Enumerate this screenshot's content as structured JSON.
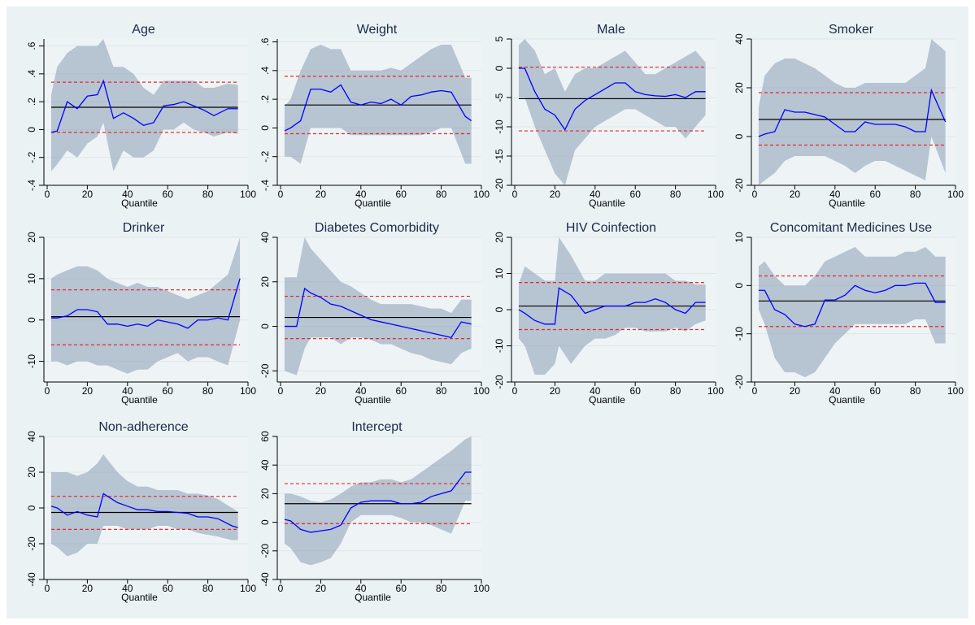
{
  "chart_data": [
    {
      "type": "quantile",
      "title": "Age",
      "xlabel": "Quantile",
      "xlim": [
        0,
        100
      ],
      "xticks": [
        0,
        20,
        40,
        60,
        80,
        100
      ],
      "ylim": [
        -0.4,
        0.65
      ],
      "yticks": [
        {
          "value": -0.4,
          "label": "-.4"
        },
        {
          "value": -0.2,
          "label": "-.2"
        },
        0,
        {
          "value": 0.2,
          "label": ".2"
        },
        {
          "value": 0.4,
          "label": ".4"
        },
        {
          "value": 0.6,
          "label": ".6"
        }
      ],
      "x": [
        2,
        5,
        10,
        15,
        20,
        25,
        28,
        33,
        38,
        43,
        48,
        53,
        58,
        63,
        68,
        73,
        78,
        83,
        90,
        95
      ],
      "values": [
        -0.02,
        -0.01,
        0.2,
        0.15,
        0.24,
        0.25,
        0.35,
        0.08,
        0.12,
        0.08,
        0.03,
        0.05,
        0.17,
        0.18,
        0.2,
        0.17,
        0.14,
        0.1,
        0.15,
        0.15
      ],
      "band_low": [
        -0.3,
        -0.25,
        -0.15,
        -0.2,
        -0.1,
        -0.05,
        0.05,
        -0.3,
        -0.15,
        -0.2,
        -0.2,
        -0.15,
        0,
        0,
        0.05,
        0,
        -0.02,
        -0.05,
        -0.02,
        -0.03
      ],
      "band_high": [
        0.25,
        0.45,
        0.55,
        0.6,
        0.6,
        0.6,
        0.65,
        0.45,
        0.45,
        0.4,
        0.3,
        0.25,
        0.35,
        0.35,
        0.35,
        0.35,
        0.3,
        0.3,
        0.33,
        0.32
      ],
      "ols": 0.16,
      "ols_ci": [
        -0.02,
        0.34
      ]
    },
    {
      "type": "quantile",
      "title": "Weight",
      "xlabel": "Quantile",
      "xlim": [
        0,
        100
      ],
      "xticks": [
        0,
        20,
        40,
        60,
        80,
        100
      ],
      "ylim": [
        -0.4,
        0.62
      ],
      "yticks": [
        {
          "value": -0.4,
          "label": "-.4"
        },
        {
          "value": -0.2,
          "label": "-.2"
        },
        0,
        {
          "value": 0.2,
          "label": ".2"
        },
        {
          "value": 0.4,
          "label": ".4"
        },
        {
          "value": 0.6,
          "label": ".6"
        }
      ],
      "x": [
        2,
        5,
        10,
        15,
        20,
        25,
        30,
        35,
        40,
        45,
        50,
        55,
        60,
        65,
        70,
        75,
        80,
        85,
        92,
        95
      ],
      "values": [
        -0.02,
        0,
        0.05,
        0.27,
        0.27,
        0.25,
        0.3,
        0.18,
        0.16,
        0.18,
        0.17,
        0.2,
        0.16,
        0.22,
        0.23,
        0.25,
        0.26,
        0.25,
        0.08,
        0.05
      ],
      "band_low": [
        -0.2,
        -0.2,
        -0.25,
        0,
        0,
        0,
        0,
        -0.05,
        -0.05,
        -0.05,
        -0.05,
        -0.05,
        -0.05,
        -0.05,
        -0.05,
        -0.03,
        0,
        0,
        -0.25,
        -0.25
      ],
      "band_high": [
        0.15,
        0.2,
        0.4,
        0.55,
        0.58,
        0.55,
        0.55,
        0.4,
        0.4,
        0.4,
        0.4,
        0.42,
        0.4,
        0.45,
        0.5,
        0.55,
        0.58,
        0.58,
        0.35,
        0.35
      ],
      "ols": 0.16,
      "ols_ci": [
        -0.04,
        0.36
      ]
    },
    {
      "type": "quantile",
      "title": "Male",
      "xlabel": "Quantile",
      "xlim": [
        0,
        100
      ],
      "xticks": [
        0,
        20,
        40,
        60,
        80,
        100
      ],
      "ylim": [
        -20,
        5
      ],
      "yticks": [
        -20,
        -15,
        -10,
        -5,
        0,
        5
      ],
      "x": [
        2,
        5,
        10,
        15,
        20,
        25,
        30,
        35,
        40,
        45,
        50,
        55,
        60,
        65,
        70,
        75,
        80,
        85,
        90,
        95
      ],
      "values": [
        0,
        0,
        -4,
        -7,
        -8,
        -10.5,
        -7,
        -5.5,
        -4.5,
        -3.5,
        -2.5,
        -2.5,
        -4,
        -4.5,
        -4.7,
        -4.8,
        -4.5,
        -5,
        -4,
        -4
      ],
      "band_low": [
        -5,
        -5,
        -10,
        -14,
        -18,
        -20,
        -14,
        -12,
        -10,
        -9,
        -8,
        -7,
        -7,
        -8,
        -9,
        -10,
        -10,
        -12,
        -10,
        -8
      ],
      "band_high": [
        4,
        5,
        3,
        -1,
        0,
        -4,
        -1,
        0,
        0,
        1,
        2,
        3,
        1,
        -1,
        -1,
        0,
        1,
        2,
        3,
        1
      ],
      "ols": -5.2,
      "ols_ci": [
        -10.7,
        0.2
      ]
    },
    {
      "type": "quantile",
      "title": "Smoker",
      "xlabel": "Quantile",
      "xlim": [
        0,
        100
      ],
      "xticks": [
        0,
        20,
        40,
        60,
        80,
        100
      ],
      "ylim": [
        -20,
        40
      ],
      "yticks": [
        -20,
        0,
        20,
        40
      ],
      "x": [
        2,
        5,
        10,
        15,
        20,
        25,
        30,
        35,
        40,
        45,
        50,
        55,
        60,
        65,
        70,
        75,
        80,
        85,
        88,
        95
      ],
      "values": [
        0,
        1,
        2,
        11,
        10,
        10,
        9,
        8,
        5,
        2,
        2,
        6,
        5,
        5,
        5,
        4,
        2,
        2,
        19,
        6
      ],
      "band_low": [
        -20,
        -18,
        -15,
        -10,
        -8,
        -8,
        -8,
        -8,
        -10,
        -12,
        -15,
        -12,
        -10,
        -10,
        -12,
        -14,
        -16,
        -18,
        0,
        -15
      ],
      "band_high": [
        12,
        25,
        30,
        32,
        32,
        30,
        28,
        25,
        22,
        20,
        20,
        22,
        22,
        22,
        22,
        22,
        25,
        28,
        40,
        35
      ],
      "ols": 7,
      "ols_ci": [
        -3.5,
        18
      ]
    },
    {
      "type": "quantile",
      "title": "Drinker",
      "xlabel": "Quantile",
      "xlim": [
        0,
        100
      ],
      "xticks": [
        0,
        20,
        40,
        60,
        80,
        100
      ],
      "ylim": [
        -15,
        20
      ],
      "yticks": [
        -10,
        0,
        10,
        20
      ],
      "x": [
        2,
        5,
        10,
        15,
        20,
        25,
        30,
        35,
        40,
        45,
        50,
        55,
        60,
        65,
        70,
        75,
        80,
        85,
        90,
        96
      ],
      "values": [
        0.5,
        0.5,
        1,
        2.5,
        2.5,
        2,
        -1,
        -1,
        -1.5,
        -1,
        -1.5,
        0,
        -0.5,
        -1,
        -2,
        0,
        0,
        0.5,
        0,
        10
      ],
      "band_low": [
        -10,
        -10,
        -11,
        -10,
        -10,
        -11,
        -11,
        -12,
        -13,
        -12,
        -12,
        -10,
        -9,
        -8,
        -10,
        -9,
        -9,
        -10,
        -11,
        0
      ],
      "band_high": [
        10,
        11,
        12,
        13,
        13,
        12,
        10,
        9,
        8,
        9,
        8,
        8,
        7,
        6,
        5,
        6,
        7,
        9,
        11,
        20
      ],
      "ols": 0.8,
      "ols_ci": [
        -6,
        7.3
      ]
    },
    {
      "type": "quantile",
      "title": "Diabetes Comorbidity",
      "xlabel": "Quantile",
      "xlim": [
        0,
        100
      ],
      "xticks": [
        0,
        20,
        40,
        60,
        80,
        100
      ],
      "ylim": [
        -25,
        40
      ],
      "yticks": [
        -20,
        0,
        20,
        40
      ],
      "x": [
        2,
        8,
        12,
        15,
        20,
        25,
        30,
        35,
        40,
        45,
        50,
        55,
        60,
        65,
        70,
        75,
        80,
        85,
        90,
        95
      ],
      "values": [
        0,
        0,
        17,
        15,
        13,
        10,
        9,
        7,
        5,
        3,
        2,
        1,
        0,
        -1,
        -2,
        -3,
        -4,
        -5,
        2,
        1
      ],
      "band_low": [
        -20,
        -22,
        -10,
        -5,
        -5,
        -5,
        -8,
        -5,
        -5,
        -6,
        -8,
        -8,
        -10,
        -12,
        -13,
        -15,
        -16,
        -17,
        -12,
        -10
      ],
      "band_high": [
        22,
        22,
        40,
        35,
        30,
        25,
        20,
        18,
        15,
        12,
        10,
        10,
        10,
        10,
        9,
        8,
        8,
        6,
        12,
        12
      ],
      "ols": 4,
      "ols_ci": [
        -5.5,
        13.5
      ]
    },
    {
      "type": "quantile",
      "title": "HIV Coinfection",
      "xlabel": "Quantile",
      "xlim": [
        0,
        100
      ],
      "xticks": [
        0,
        20,
        40,
        60,
        80,
        100
      ],
      "ylim": [
        -20,
        20
      ],
      "yticks": [
        -20,
        -10,
        0,
        10,
        20
      ],
      "x": [
        2,
        5,
        10,
        15,
        20,
        22,
        28,
        35,
        40,
        45,
        50,
        55,
        60,
        65,
        70,
        75,
        80,
        85,
        90,
        95
      ],
      "values": [
        0,
        -1,
        -3,
        -4,
        -4,
        6,
        4,
        -1,
        0,
        1,
        1,
        1,
        2,
        2,
        3,
        2,
        0,
        -1,
        2,
        2
      ],
      "band_low": [
        -8,
        -10,
        -18,
        -18,
        -15,
        -10,
        -15,
        -10,
        -8,
        -8,
        -7,
        -5,
        -5,
        -6,
        -6,
        -6,
        -5,
        -6,
        -4,
        -3
      ],
      "band_high": [
        7,
        12,
        10,
        8,
        8,
        20,
        15,
        8,
        8,
        10,
        10,
        10,
        10,
        10,
        10,
        10,
        8,
        8,
        7,
        7
      ],
      "ols": 1,
      "ols_ci": [
        -5.5,
        7.5
      ]
    },
    {
      "type": "quantile",
      "title": "Concomitant Medicines Use",
      "xlabel": "Quantile",
      "xlim": [
        0,
        100
      ],
      "xticks": [
        0,
        20,
        40,
        60,
        80,
        100
      ],
      "ylim": [
        -20,
        10
      ],
      "yticks": [
        -20,
        -10,
        0,
        10
      ],
      "x": [
        2,
        5,
        10,
        15,
        20,
        25,
        30,
        35,
        40,
        45,
        50,
        55,
        60,
        65,
        70,
        75,
        80,
        85,
        90,
        95
      ],
      "values": [
        -1,
        -1,
        -5,
        -6,
        -8,
        -8.5,
        -8,
        -3,
        -3,
        -2,
        0,
        -1,
        -1.5,
        -1,
        0,
        0,
        0.5,
        0.5,
        -3.5,
        -3.5
      ],
      "band_low": [
        -5,
        -8,
        -15,
        -18,
        -18,
        -19,
        -18,
        -15,
        -12,
        -10,
        -8,
        -8,
        -8,
        -8,
        -8,
        -8,
        -7,
        -7,
        -12,
        -12
      ],
      "band_high": [
        4,
        5,
        2,
        0,
        0,
        0,
        2,
        5,
        6,
        7,
        8,
        6,
        6,
        6,
        6,
        7,
        7,
        8,
        6,
        6
      ],
      "ols": -3.2,
      "ols_ci": [
        -8.5,
        2
      ]
    },
    {
      "type": "quantile",
      "title": "Non-adherence",
      "xlabel": "Quantile",
      "xlim": [
        0,
        100
      ],
      "xticks": [
        0,
        20,
        40,
        60,
        80,
        100
      ],
      "ylim": [
        -40,
        40
      ],
      "yticks": [
        -40,
        -20,
        0,
        20,
        40
      ],
      "x": [
        2,
        5,
        10,
        15,
        20,
        25,
        28,
        35,
        40,
        45,
        50,
        55,
        60,
        65,
        70,
        75,
        80,
        85,
        92,
        95
      ],
      "values": [
        1,
        0,
        -4,
        -2,
        -4,
        -5,
        8,
        3,
        1,
        -1,
        -1,
        -2,
        -2,
        -2.5,
        -3,
        -5,
        -5,
        -6,
        -10,
        -11
      ],
      "band_low": [
        -20,
        -22,
        -27,
        -25,
        -20,
        -20,
        -10,
        -10,
        -12,
        -12,
        -12,
        -10,
        -10,
        -12,
        -12,
        -14,
        -15,
        -16,
        -18,
        -18
      ],
      "band_high": [
        20,
        20,
        20,
        18,
        20,
        25,
        30,
        20,
        15,
        12,
        12,
        10,
        10,
        10,
        8,
        8,
        7,
        5,
        0,
        -2
      ],
      "ols": -2.5,
      "ols_ci": [
        -12,
        6.5
      ]
    },
    {
      "type": "quantile",
      "title": "Intercept",
      "xlabel": "Quantile",
      "xlim": [
        0,
        100
      ],
      "xticks": [
        0,
        20,
        40,
        60,
        80,
        100
      ],
      "ylim": [
        -40,
        60
      ],
      "yticks": [
        -40,
        -20,
        0,
        20,
        40,
        60
      ],
      "x": [
        2,
        5,
        10,
        15,
        20,
        25,
        30,
        35,
        40,
        45,
        50,
        55,
        60,
        65,
        70,
        75,
        80,
        85,
        92,
        95
      ],
      "values": [
        2,
        1,
        -5,
        -7,
        -6,
        -5,
        -2,
        10,
        14,
        15,
        15,
        15,
        13,
        13,
        14,
        18,
        20,
        22,
        35,
        35
      ],
      "band_low": [
        -15,
        -18,
        -28,
        -30,
        -28,
        -25,
        -15,
        0,
        5,
        5,
        5,
        5,
        3,
        0,
        0,
        -2,
        -5,
        -8,
        15,
        15
      ],
      "band_high": [
        20,
        20,
        18,
        15,
        14,
        16,
        20,
        25,
        28,
        28,
        30,
        30,
        28,
        30,
        35,
        40,
        45,
        50,
        58,
        60
      ],
      "ols": 13,
      "ols_ci": [
        -1,
        27
      ]
    }
  ]
}
